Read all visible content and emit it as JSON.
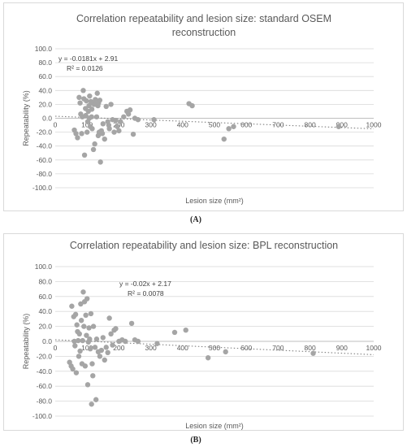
{
  "chart_data": [
    {
      "type": "scatter",
      "panel_label": "(A)",
      "title_line1": "Correlation repeatability and lesion size: standard OSEM",
      "title_line2": "reconstruction",
      "xlabel": "Lesion size (mm²)",
      "ylabel": "Repeatability (%)",
      "xlim": [
        0,
        1000
      ],
      "ylim": [
        -100,
        100
      ],
      "x_ticks": [
        0,
        100,
        200,
        300,
        400,
        500,
        600,
        700,
        800,
        900,
        1000
      ],
      "y_ticks": [
        "100.0",
        "80.0",
        "60.0",
        "40.0",
        "20.0",
        "0.0",
        "-20.0",
        "-40.0",
        "-60.0",
        "-80.0",
        "-100.0"
      ],
      "grid": "horizontal",
      "trendline": {
        "type": "linear",
        "slope": -0.0181,
        "intercept": 2.91
      },
      "equation": "y = -0.0181x + 2.91",
      "r_squared": "R² = 0.0126",
      "points": [
        [
          75,
          30
        ],
        [
          78,
          22
        ],
        [
          80,
          6
        ],
        [
          83,
          -22
        ],
        [
          85,
          2
        ],
        [
          88,
          40
        ],
        [
          90,
          28
        ],
        [
          92,
          -53
        ],
        [
          95,
          14
        ],
        [
          96,
          4
        ],
        [
          98,
          25
        ],
        [
          100,
          -20
        ],
        [
          102,
          -5
        ],
        [
          104,
          10
        ],
        [
          106,
          18
        ],
        [
          107,
          0
        ],
        [
          108,
          32
        ],
        [
          110,
          -12
        ],
        [
          112,
          24
        ],
        [
          114,
          2
        ],
        [
          115,
          13
        ],
        [
          116,
          -15
        ],
        [
          118,
          22
        ],
        [
          120,
          -45
        ],
        [
          122,
          20
        ],
        [
          124,
          -37
        ],
        [
          126,
          27
        ],
        [
          128,
          20
        ],
        [
          130,
          2
        ],
        [
          132,
          36
        ],
        [
          134,
          18
        ],
        [
          135,
          -25
        ],
        [
          136,
          22
        ],
        [
          138,
          -20
        ],
        [
          140,
          26
        ],
        [
          142,
          -63
        ],
        [
          145,
          -18
        ],
        [
          148,
          -22
        ],
        [
          150,
          -8
        ],
        [
          155,
          -30
        ],
        [
          160,
          17
        ],
        [
          165,
          -5
        ],
        [
          168,
          -10
        ],
        [
          170,
          -15
        ],
        [
          175,
          20
        ],
        [
          180,
          -2
        ],
        [
          185,
          -20
        ],
        [
          190,
          -3
        ],
        [
          195,
          -12
        ],
        [
          200,
          -18
        ],
        [
          205,
          -5
        ],
        [
          215,
          2
        ],
        [
          225,
          10
        ],
        [
          230,
          6
        ],
        [
          235,
          12
        ],
        [
          245,
          -23
        ],
        [
          250,
          0
        ],
        [
          260,
          -2
        ],
        [
          310,
          -2
        ],
        [
          420,
          21
        ],
        [
          430,
          18
        ],
        [
          545,
          -15
        ],
        [
          560,
          -12
        ],
        [
          530,
          -30
        ],
        [
          890,
          -12
        ],
        [
          60,
          -17
        ],
        [
          65,
          -22
        ],
        [
          70,
          -28
        ]
      ]
    },
    {
      "type": "scatter",
      "panel_label": "(B)",
      "title_line1": "Correlation repeatability and lesion size: BPL reconstruction",
      "title_line2": "",
      "xlabel": "Lesion size (mm²)",
      "ylabel": "Repeatability (%)",
      "xlim": [
        0,
        1000
      ],
      "ylim": [
        -100,
        100
      ],
      "x_ticks": [
        0,
        100,
        200,
        300,
        400,
        500,
        600,
        700,
        800,
        900,
        1000
      ],
      "y_ticks": [
        "100.0",
        "80.0",
        "60.0",
        "40.0",
        "20.0",
        "0.0",
        "-20.0",
        "-40.0",
        "-60.0",
        "-80.0",
        "-100.0"
      ],
      "grid": "horizontal",
      "trendline": {
        "type": "linear",
        "slope": -0.02,
        "intercept": 2.17
      },
      "equation": "y = -0.02x + 2.17",
      "r_squared": "R² = 0.0078",
      "points": [
        [
          45,
          -28
        ],
        [
          50,
          -33
        ],
        [
          52,
          47
        ],
        [
          55,
          -37
        ],
        [
          58,
          33
        ],
        [
          60,
          0
        ],
        [
          62,
          -6
        ],
        [
          64,
          36
        ],
        [
          66,
          -42
        ],
        [
          68,
          22
        ],
        [
          70,
          13
        ],
        [
          72,
          1
        ],
        [
          74,
          -20
        ],
        [
          76,
          10
        ],
        [
          78,
          -13
        ],
        [
          80,
          50
        ],
        [
          82,
          28
        ],
        [
          84,
          -30
        ],
        [
          86,
          1
        ],
        [
          88,
          66
        ],
        [
          90,
          20
        ],
        [
          92,
          53
        ],
        [
          94,
          -33
        ],
        [
          96,
          35
        ],
        [
          98,
          8
        ],
        [
          100,
          57
        ],
        [
          102,
          -58
        ],
        [
          104,
          -1
        ],
        [
          106,
          18
        ],
        [
          108,
          3
        ],
        [
          110,
          -10
        ],
        [
          112,
          37
        ],
        [
          114,
          -84
        ],
        [
          116,
          -30
        ],
        [
          118,
          -46
        ],
        [
          120,
          20
        ],
        [
          125,
          -8
        ],
        [
          128,
          -78
        ],
        [
          130,
          3
        ],
        [
          135,
          -14
        ],
        [
          140,
          -20
        ],
        [
          145,
          -12
        ],
        [
          150,
          5
        ],
        [
          155,
          -25
        ],
        [
          160,
          -8
        ],
        [
          165,
          -15
        ],
        [
          170,
          31
        ],
        [
          175,
          10
        ],
        [
          180,
          -5
        ],
        [
          185,
          15
        ],
        [
          190,
          17
        ],
        [
          200,
          0
        ],
        [
          210,
          2
        ],
        [
          220,
          0
        ],
        [
          240,
          24
        ],
        [
          250,
          2
        ],
        [
          260,
          0
        ],
        [
          320,
          -3
        ],
        [
          375,
          12
        ],
        [
          410,
          15
        ],
        [
          480,
          -22
        ],
        [
          535,
          -14
        ],
        [
          810,
          -16
        ]
      ]
    }
  ]
}
